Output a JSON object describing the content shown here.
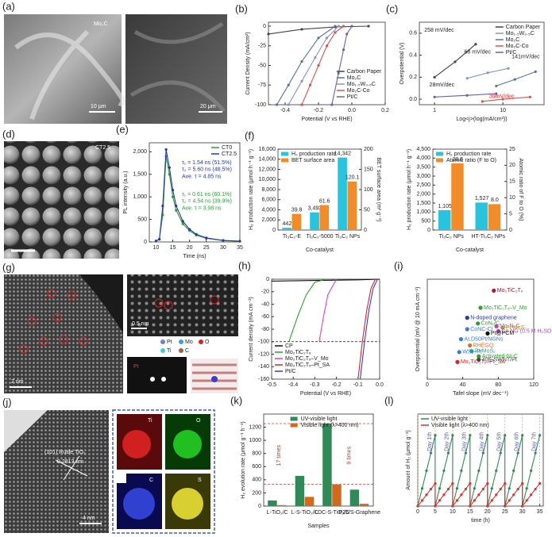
{
  "images": {
    "a": {
      "panel": "(a)",
      "material": "Mo₂C",
      "scale1": "10 μm",
      "scale2": "20 μm"
    },
    "d": {
      "panel": "(d)",
      "sample": "CT2.5"
    },
    "g": {
      "panel": "(g)",
      "scale1": "2 nm",
      "scale2": "0.5 nm",
      "legend": [
        "Pt",
        "Mo",
        "O",
        "Ti",
        "C"
      ],
      "atom": "Pt"
    },
    "j": {
      "panel": "(j)",
      "phase": "(101) Rutile TiO₂",
      "spacing": "0.2813 nm",
      "scale": "4 nm",
      "maps": [
        "Ti",
        "O",
        "C",
        "S"
      ]
    }
  },
  "chart_data": [
    {
      "panel": "(b)",
      "type": "line",
      "markers": true,
      "legend": "lower right",
      "xlabel": "Potential (V vs RHE)",
      "ylabel": "Current Density (mA/cm²)",
      "xlim": [
        -0.5,
        0.2
      ],
      "xticks": [
        -0.4,
        -0.2,
        {
          "value": 0,
          "label": "0.0"
        },
        0.2
      ],
      "ylim": [
        -100,
        5
      ],
      "yticks": [
        0,
        -25,
        -50,
        -75,
        -100
      ],
      "series": [
        {
          "name": "Carbon Paper",
          "color": "#444444",
          "x": [
            -0.5,
            -0.3,
            -0.1,
            0.1
          ],
          "y": [
            -10,
            -4,
            -1,
            0
          ]
        },
        {
          "name": "Mo₂C",
          "color": "#5a6ea8",
          "x": [
            -0.45,
            -0.38,
            -0.3,
            -0.2,
            -0.1
          ],
          "y": [
            -100,
            -75,
            -45,
            -15,
            0
          ]
        },
        {
          "name": "Mo₁.₅W₀.₅C",
          "color": "#8a93c8",
          "x": [
            -0.38,
            -0.3,
            -0.22,
            -0.15,
            -0.08
          ],
          "y": [
            -100,
            -70,
            -40,
            -15,
            0
          ]
        },
        {
          "name": "Mo₂C-Co",
          "color": "#d9534f",
          "x": [
            -0.3,
            -0.25,
            -0.2,
            -0.15,
            -0.1,
            -0.05
          ],
          "y": [
            -100,
            -75,
            -50,
            -25,
            -8,
            0
          ]
        },
        {
          "name": "Pt/C",
          "color": "#6a5fb0",
          "x": [
            -0.12,
            -0.08,
            -0.05,
            -0.03,
            0
          ],
          "y": [
            -100,
            -60,
            -30,
            -10,
            0
          ]
        }
      ]
    },
    {
      "panel": "(c)",
      "type": "line",
      "markers": true,
      "xlog": true,
      "legend": "upper right",
      "xlabel": "Log<j>(log(mA/cm²))",
      "ylabel": "Overpotential (V)",
      "xlim": [
        0.6,
        40
      ],
      "xticks": [
        1,
        10
      ],
      "ylim": [
        -0.05,
        0.7
      ],
      "yticks": [
        {
          "value": 0,
          "label": "0.0"
        },
        0.2,
        0.4,
        0.6
      ],
      "annotations": [
        "258 mV/dec",
        "68 mV/dec",
        "141mV/dec",
        "28mV/dec",
        "39mV/dec"
      ],
      "series": [
        {
          "name": "Carbon Paper",
          "color": "#444444",
          "x": [
            1,
            2,
            4
          ],
          "y": [
            0.2,
            0.34,
            0.5
          ]
        },
        {
          "name": "Mo₁.₅W₀.₅C",
          "color": "#8a93c8",
          "x": [
            3,
            6,
            12
          ],
          "y": [
            0.19,
            0.24,
            0.28
          ]
        },
        {
          "name": "Mo₂C",
          "color": "#5a6ea8",
          "x": [
            8,
            15,
            30
          ],
          "y": [
            0.12,
            0.18,
            0.25
          ]
        },
        {
          "name": "Mo₂C-Co",
          "color": "#d9534f",
          "x": [
            5,
            10,
            25
          ],
          "y": [
            -0.02,
            0.0,
            0.02
          ]
        },
        {
          "name": "Pt/C",
          "color": "#6a5fb0",
          "x": [
            1,
            3,
            8
          ],
          "y": [
            0.02,
            0.035,
            0.05
          ]
        }
      ]
    },
    {
      "panel": "(e)",
      "type": "line",
      "markers": true,
      "legend": "upper right",
      "xlabel": "Time (ns)",
      "ylabel": "PL intensity (a.u.)",
      "xlim": [
        8,
        35
      ],
      "xticks": [
        10,
        15,
        20,
        25,
        30,
        35
      ],
      "ylim": [
        0,
        2200
      ],
      "yticks": [
        0,
        500,
        {
          "value": 1000,
          "label": "1,000"
        },
        {
          "value": 1500,
          "label": "1,500"
        },
        {
          "value": 2000,
          "label": "2,000"
        }
      ],
      "annotations": [
        "τ₁ = 1.54 ns (51.5%)",
        "τ₂ = 5.60 ns (48.5%)",
        "Ave. τ = 4.85 ns",
        "τ₁ = 0.61 ns (60.1%)",
        "τ₂ = 4.54 ns (39.9%)",
        "Ave. τ = 3.98 ns"
      ],
      "series": [
        {
          "name": "CT0",
          "color": "#2e9a3a",
          "x": [
            10,
            11,
            12,
            13,
            14,
            15,
            16,
            18,
            20,
            22,
            25,
            30,
            35
          ],
          "y": [
            20,
            60,
            600,
            1900,
            1500,
            1000,
            700,
            400,
            250,
            150,
            80,
            30,
            15
          ]
        },
        {
          "name": "CT2.5",
          "color": "#2a3a9a",
          "x": [
            10,
            11,
            12,
            13,
            14,
            15,
            16,
            18,
            20,
            22,
            25,
            30,
            35
          ],
          "y": [
            20,
            60,
            800,
            2050,
            1650,
            1150,
            800,
            460,
            280,
            170,
            90,
            35,
            15
          ]
        }
      ]
    },
    {
      "panel": "(f)",
      "type": "bar",
      "data_labels": true,
      "legend": "upper left",
      "xlabel": "Co-catalyst",
      "ylabel": "H₂ production rate (μmol h⁻¹ g⁻¹)",
      "y2label": "BET surface area (m² g⁻¹)",
      "categories": [
        "Ti₃C₂-E",
        "Ti₃C₂-5000",
        "Ti₃C₂ NPs"
      ],
      "ylim": [
        0,
        16000
      ],
      "yticks": [
        0,
        {
          "value": 2000,
          "label": "2,000"
        },
        {
          "value": 4000,
          "label": "4,000"
        },
        {
          "value": 6000,
          "label": "6,000"
        },
        {
          "value": 8000,
          "label": "8,000"
        },
        {
          "value": 10000,
          "label": "10,000"
        },
        {
          "value": 12000,
          "label": "12,000"
        },
        {
          "value": 14000,
          "label": "14,000"
        },
        {
          "value": 16000,
          "label": "16,000"
        }
      ],
      "y2lim": [
        0,
        200
      ],
      "y2ticks": [
        0,
        50,
        100,
        150,
        200
      ],
      "series": [
        {
          "name": "H₂ production rate",
          "color": "#27c4e0",
          "values": [
            442,
            3493,
            14342
          ],
          "value_labels": [
            "442",
            "3,493",
            "14,342"
          ]
        },
        {
          "name": "BET surface area",
          "color": "#f28c28",
          "axis": "y2",
          "values": [
            39.8,
            61.6,
            120.1
          ]
        }
      ]
    },
    {
      "type": "bar",
      "data_labels": true,
      "legend": "upper left",
      "xlabel": "Co-catalyst",
      "ylabel": "H₂ production rate (μmol h⁻¹ g⁻¹)",
      "y2label": "Atomic ratio of F to O (%)",
      "categories": [
        "Ti₃C₂ NPs",
        "HT-Ti₃C₂ NPs"
      ],
      "ylim": [
        0,
        4500
      ],
      "yticks": [
        0,
        500,
        {
          "value": 1000,
          "label": "1,000"
        },
        {
          "value": 1500,
          "label": "1,500"
        },
        {
          "value": 2000,
          "label": "2,000"
        },
        {
          "value": 2500,
          "label": "2,500"
        },
        {
          "value": 3000,
          "label": "3,000"
        },
        {
          "value": 3500,
          "label": "3,500"
        },
        {
          "value": 4000,
          "label": "4,000"
        },
        {
          "value": 4500,
          "label": "4,500"
        }
      ],
      "y2lim": [
        0,
        25
      ],
      "y2ticks": [
        0,
        5,
        10,
        15,
        20,
        25
      ],
      "series": [
        {
          "name": "H₂ production rate",
          "color": "#27c4e0",
          "values": [
            1105,
            1527
          ],
          "value_labels": [
            "1,105",
            "1,527"
          ]
        },
        {
          "name": "Atomic ratio (F to O)",
          "color": "#f28c28",
          "axis": "y2",
          "values": [
            20.6,
            8
          ],
          "value_labels": [
            "20.6",
            "8.0"
          ]
        }
      ]
    },
    {
      "panel": "(h)",
      "type": "line",
      "legend": "lower left",
      "xlabel": "Potential (V vs RHE)",
      "ylabel": "Current density (mA cm⁻²)",
      "xlim": [
        -0.5,
        0
      ],
      "xticks": [
        -0.5,
        -0.4,
        -0.3,
        -0.2,
        -0.1,
        {
          "value": 0,
          "label": "0.0"
        }
      ],
      "ylim": [
        -160,
        0
      ],
      "yticks": [
        0,
        -20,
        -40,
        -60,
        -80,
        -100,
        -120,
        -140,
        -160
      ],
      "hlines": [
        -100
      ],
      "series": [
        {
          "name": "CP",
          "color": "#111111",
          "x": [
            -0.5,
            -0.3,
            -0.1,
            0
          ],
          "y": [
            -3,
            -2,
            -1,
            0
          ]
        },
        {
          "name": "Mo₂TiC₂Tₓ",
          "color": "#2ca02c",
          "x": [
            -0.42,
            -0.38,
            -0.34,
            -0.3,
            -0.25
          ],
          "y": [
            -100,
            -60,
            -25,
            -5,
            0
          ]
        },
        {
          "name": "Mo₂TiC₂Tₓ–V_Mo",
          "color": "#e040c0",
          "x": [
            -0.28,
            -0.26,
            -0.24,
            -0.2
          ],
          "y": [
            -100,
            -60,
            -25,
            0
          ]
        },
        {
          "name": "Mo₂TiC₂Tₓ–Pt_SA",
          "color": "#d62728",
          "x": [
            -0.1,
            -0.08,
            -0.06,
            -0.04,
            -0.02
          ],
          "y": [
            -160,
            -100,
            -50,
            -15,
            0
          ]
        },
        {
          "name": "Pt/C",
          "color": "#3b3bd6",
          "x": [
            -0.09,
            -0.07,
            -0.05,
            -0.03,
            -0.01
          ],
          "y": [
            -160,
            -100,
            -50,
            -15,
            0
          ]
        }
      ]
    },
    {
      "panel": "(i)",
      "type": "scatter",
      "xlabel": "Tafel slope (mV dec⁻¹)",
      "ylabel": "Overpotential (mV @ 10 mA cm⁻²)",
      "xlim": [
        0,
        120
      ],
      "xticks": [
        0,
        40,
        80,
        120
      ],
      "ylim": [
        0,
        350
      ],
      "yticks": [],
      "points": [
        {
          "label": "Mo₂TiC₂Tₓ",
          "color": "#a0203a",
          "x": 75,
          "y": 310
        },
        {
          "label": "Mo₂TiC₂Tₓ–V_Mo",
          "color": "#2ca02c",
          "x": 60,
          "y": 250
        },
        {
          "label": "N-doped graphene",
          "color": "#2a3a9a",
          "x": 45,
          "y": 215
        },
        {
          "label": "CoN₁/C",
          "color": "#2ca02c",
          "x": 57,
          "y": 195
        },
        {
          "label": "CoNC-Cl",
          "color": "#3b7bd6",
          "x": 45,
          "y": 175
        },
        {
          "label": "Mo₂N₂C",
          "color": "#c040c0",
          "x": 78,
          "y": 185
        },
        {
          "label": "Pt-MoS₂",
          "color": "#a0a020",
          "x": 85,
          "y": 180
        },
        {
          "label": "Co NG (0.5 M H₂SO₄)",
          "color": "#c040c0",
          "x": 80,
          "y": 168
        },
        {
          "label": "Pt@PCM",
          "color": "#111111",
          "x": 68,
          "y": 160
        },
        {
          "label": "ALD50Pt/NGNs",
          "color": "#3b7bd6",
          "x": 38,
          "y": 140
        },
        {
          "label": "RHEGQ",
          "color": "#e07020",
          "x": 48,
          "y": 118
        },
        {
          "label": "WS₂–Pt",
          "color": "#3b7bd6",
          "x": 36,
          "y": 95
        },
        {
          "label": "Pt-MoS₂",
          "color": "#20a0a0",
          "x": 50,
          "y": 98
        },
        {
          "label": "Activated-Ni-C",
          "color": "#2ca02c",
          "x": 58,
          "y": 80
        },
        {
          "label": "40E-SWNT/Pt",
          "color": "#444444",
          "x": 58,
          "y": 68
        },
        {
          "label": "Mo₂TiC₂Tₓ–Pt_SA",
          "color": "#d62728",
          "x": 34,
          "y": 60
        }
      ]
    },
    {
      "panel": "(k)",
      "type": "bar",
      "legend": "upper right",
      "xlabel": "Samples",
      "ylabel": "H₂ evolution rate (μmol g⁻¹ h⁻¹)",
      "categories": [
        "L-TiO₂/C",
        "L-S-TiO₂/C",
        "LDC-S-TiO₂/C",
        "P25/S-Graphene"
      ],
      "ylim": [
        0,
        1400
      ],
      "yticks": [
        0,
        200,
        400,
        600,
        800,
        1000,
        1200
      ],
      "hlines": [
        1255,
        330
      ],
      "annotations": [
        "17 times",
        "9 times"
      ],
      "series": [
        {
          "name": "UV-visible light",
          "color": "#2e8b57",
          "values": [
            85,
            460,
            1255,
            250
          ]
        },
        {
          "name": "Visible light (λ>400 nm)",
          "color": "#d2691e",
          "values": [
            15,
            140,
            330,
            35
          ]
        }
      ]
    },
    {
      "panel": "(l)",
      "type": "line",
      "markers": true,
      "legend": "upper left",
      "grid_x": true,
      "xlabel": "time (h)",
      "ylabel": "Amount of H₂ (μmol g⁻¹)",
      "xlim": [
        0,
        36
      ],
      "xticks": [
        0,
        5,
        10,
        15,
        20,
        25,
        30,
        35
      ],
      "ylim": [
        0,
        1300
      ],
      "yticks": [],
      "annotations": [
        "Day 1th",
        "Day 2th",
        "Day 3th",
        "Day 4th",
        "Day 5th",
        "Day 6th",
        "Day 7th"
      ],
      "series": [
        {
          "name": "UV-visible light",
          "color": "#2e8b57",
          "x": [
            0,
            1.25,
            2.5,
            3.75,
            5,
            5,
            6.25,
            7.5,
            8.75,
            10,
            10,
            11.25,
            12.5,
            13.75,
            15,
            15,
            16.25,
            17.5,
            18.75,
            20,
            20,
            21.25,
            22.5,
            23.75,
            25,
            25,
            26.25,
            27.5,
            28.75,
            30,
            30,
            31.25,
            32.5,
            33.75,
            35
          ],
          "y": [
            0,
            250,
            500,
            750,
            1000,
            0,
            250,
            500,
            750,
            1000,
            0,
            250,
            500,
            750,
            1000,
            0,
            250,
            500,
            750,
            1000,
            0,
            250,
            500,
            750,
            1000,
            0,
            250,
            500,
            750,
            1000,
            0,
            250,
            500,
            750,
            1000
          ]
        },
        {
          "name": "Visible light (λ>400 nm)",
          "color": "#e03030",
          "x": [
            0,
            1.25,
            2.5,
            3.75,
            5,
            5,
            6.25,
            7.5,
            8.75,
            10,
            10,
            11.25,
            12.5,
            13.75,
            15,
            15,
            16.25,
            17.5,
            18.75,
            20,
            20,
            21.25,
            22.5,
            23.75,
            25,
            25,
            26.25,
            27.5,
            28.75,
            30,
            30,
            31.25,
            32.5,
            33.75,
            35
          ],
          "y": [
            0,
            80,
            160,
            240,
            320,
            0,
            80,
            160,
            240,
            320,
            0,
            80,
            160,
            240,
            320,
            0,
            80,
            160,
            240,
            320,
            0,
            80,
            160,
            240,
            320,
            0,
            80,
            160,
            240,
            320,
            0,
            80,
            160,
            240,
            320
          ]
        }
      ]
    }
  ]
}
